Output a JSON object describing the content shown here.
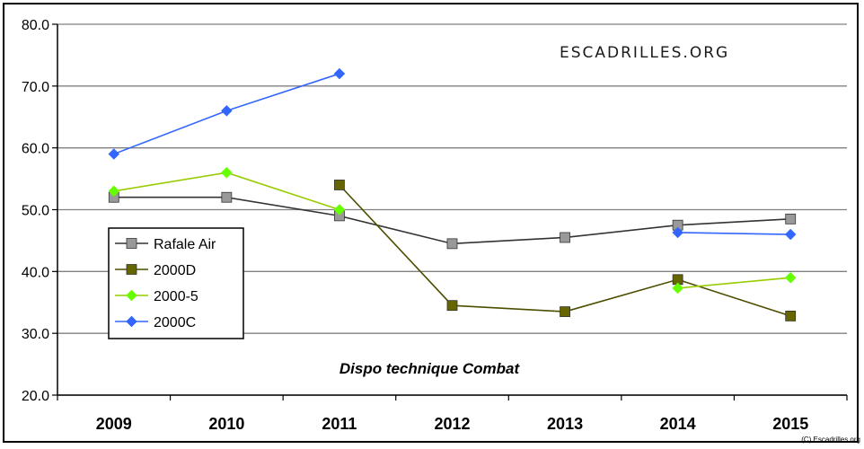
{
  "chart_data": {
    "type": "line",
    "categories": [
      "2009",
      "2010",
      "2011",
      "2012",
      "2013",
      "2014",
      "2015"
    ],
    "ylim": [
      20,
      80
    ],
    "yticks": [
      "20.0",
      "30.0",
      "40.0",
      "50.0",
      "60.0",
      "70.0",
      "80.0"
    ],
    "grid": "horizontal",
    "legend_position": "left",
    "annotation": "Dispo technique Combat",
    "watermark": "ESCADRILLES.ORG",
    "copyright": "(C) Escadrilles.org",
    "series": [
      {
        "name": "Rafale Air",
        "color": "#999999",
        "line_color": "#333333",
        "marker": "square",
        "values": [
          52,
          52,
          49,
          44.5,
          45.5,
          47.5,
          48.5
        ]
      },
      {
        "name": "2000D",
        "color": "#666600",
        "line_color": "#4d4d00",
        "marker": "square",
        "values": [
          null,
          null,
          54,
          34.5,
          33.5,
          38.7,
          32.8
        ]
      },
      {
        "name": "2000-5",
        "color": "#66ff00",
        "line_color": "#99cc00",
        "marker": "diamond",
        "values": [
          53,
          56,
          50,
          null,
          null,
          37.3,
          39
        ]
      },
      {
        "name": "2000C",
        "color": "#3366ff",
        "line_color": "#3366ff",
        "marker": "diamond",
        "values": [
          59,
          66,
          72,
          null,
          null,
          46.3,
          46
        ]
      }
    ]
  }
}
